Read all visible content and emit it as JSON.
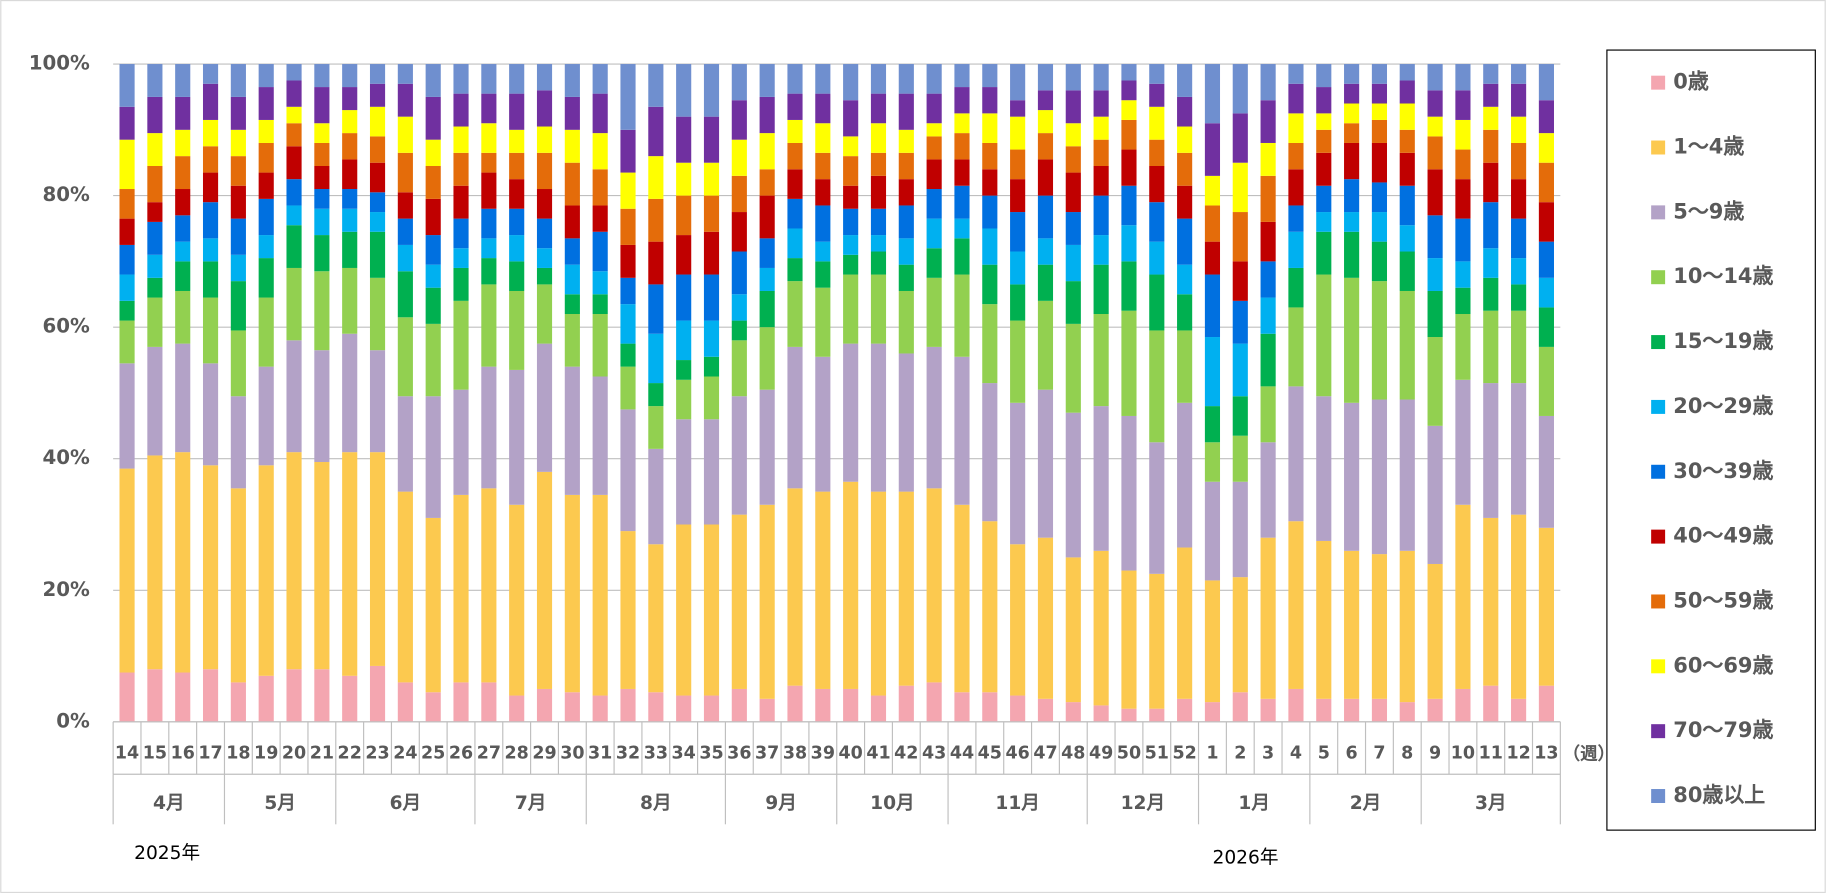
{
  "chart_data": {
    "type": "stacked_bar",
    "categories": [
      "14",
      "15",
      "16",
      "17",
      "18",
      "19",
      "20",
      "21",
      "22",
      "23",
      "24",
      "25",
      "26",
      "27",
      "28",
      "29",
      "30",
      "31",
      "32",
      "33",
      "34",
      "35",
      "36",
      "37",
      "38",
      "39",
      "40",
      "41",
      "42",
      "43",
      "44",
      "45",
      "46",
      "47",
      "48",
      "49",
      "50",
      "51",
      "52",
      "1",
      "2",
      "3",
      "4",
      "5",
      "6",
      "7",
      "8",
      "9",
      "10",
      "11",
      "12",
      "13"
    ],
    "x_unit": "（週）",
    "months": [
      {
        "label": "4月",
        "weeks": 4
      },
      {
        "label": "5月",
        "weeks": 4
      },
      {
        "label": "6月",
        "weeks": 5
      },
      {
        "label": "7月",
        "weeks": 4
      },
      {
        "label": "8月",
        "weeks": 5
      },
      {
        "label": "9月",
        "weeks": 4
      },
      {
        "label": "10月",
        "weeks": 4
      },
      {
        "label": "11月",
        "weeks": 5
      },
      {
        "label": "12月",
        "weeks": 4
      },
      {
        "label": "1月",
        "weeks": 4
      },
      {
        "label": "2月",
        "weeks": 4
      },
      {
        "label": "3月",
        "weeks": 5
      }
    ],
    "years": [
      "2025年",
      "2026年"
    ],
    "ylim": [
      0,
      100
    ],
    "yticks": [
      {
        "value": 0,
        "label": "0%"
      },
      {
        "value": 20,
        "label": "20%"
      },
      {
        "value": 40,
        "label": "40%"
      },
      {
        "value": 60,
        "label": "60%"
      },
      {
        "value": 80,
        "label": "80%"
      },
      {
        "value": 100,
        "label": "100%"
      }
    ],
    "grid": true,
    "legend": "right",
    "series": [
      {
        "name": "0歳",
        "color": "#f4a6b0",
        "values": [
          7.5,
          8,
          7.5,
          8,
          6,
          7,
          8,
          8,
          7,
          8.5,
          6,
          4.5,
          6,
          6,
          4,
          5,
          4.5,
          4,
          5,
          4.5,
          4,
          4,
          5,
          3.5,
          5.5,
          5,
          5,
          4,
          5.5,
          6,
          4.5,
          4.5,
          4,
          3.5,
          3,
          2.5,
          2,
          2,
          3.5,
          3,
          4.5,
          3.5,
          5,
          3.5,
          3.5,
          3.5,
          3,
          3.5,
          5,
          5.5,
          3.5,
          5.5
        ]
      },
      {
        "name": "1～4歳",
        "color": "#fcc94f",
        "values": [
          31,
          32.5,
          33.5,
          31,
          29.5,
          32,
          33,
          31.5,
          34,
          32.5,
          29,
          26.5,
          28.5,
          29.5,
          29,
          33,
          30,
          30.5,
          24,
          22.5,
          26,
          26,
          26.5,
          29.5,
          30,
          30,
          31.5,
          31,
          29.5,
          29.5,
          28.5,
          26,
          23,
          24.5,
          22,
          23.5,
          21,
          20.5,
          23,
          18.5,
          17.5,
          24.5,
          25.5,
          24,
          22.5,
          22,
          23,
          20.5,
          28,
          25.5,
          28,
          24
        ]
      },
      {
        "name": "5～9歳",
        "color": "#b3a2c7",
        "values": [
          16,
          16.5,
          16.5,
          15.5,
          14,
          15,
          17,
          17,
          18,
          15.5,
          14.5,
          18.5,
          16,
          18.5,
          20.5,
          19.5,
          19.5,
          18,
          18.5,
          14.5,
          16,
          16,
          18,
          17.5,
          21.5,
          20.5,
          21,
          22.5,
          21,
          21.5,
          22.5,
          21,
          21.5,
          22.5,
          22,
          22,
          23.5,
          20,
          22,
          15,
          14.5,
          14.5,
          20.5,
          22,
          22.5,
          23.5,
          23,
          21,
          19,
          20.5,
          20,
          17
        ]
      },
      {
        "name": "10～14歳",
        "color": "#92d050",
        "values": [
          6.5,
          7.5,
          8,
          10,
          10,
          10.5,
          11,
          12,
          10,
          11,
          12,
          11,
          13.5,
          12.5,
          12,
          9,
          8,
          9.5,
          6.5,
          6.5,
          6,
          6.5,
          8.5,
          9.5,
          10,
          10.5,
          10.5,
          10.5,
          9.5,
          10.5,
          12.5,
          12,
          12.5,
          13.5,
          13.5,
          14,
          16,
          17,
          11,
          6,
          7,
          8.5,
          12,
          18.5,
          19,
          18,
          16.5,
          13.5,
          10,
          11,
          11,
          10.5
        ]
      },
      {
        "name": "15～19歳",
        "color": "#00b050",
        "values": [
          3,
          3,
          4.5,
          5.5,
          7.5,
          6,
          6.5,
          5.5,
          5.5,
          7,
          7,
          5.5,
          5,
          4,
          4.5,
          2.5,
          3,
          3,
          3.5,
          3.5,
          3,
          3,
          3,
          5.5,
          3.5,
          4,
          3,
          3.5,
          4,
          4.5,
          5.5,
          6,
          5.5,
          5.5,
          6.5,
          7.5,
          7.5,
          8.5,
          5.5,
          5.5,
          6,
          8,
          6,
          6.5,
          7,
          6,
          6,
          7,
          4,
          5,
          4,
          6
        ]
      },
      {
        "name": "20～29歳",
        "color": "#00b0f0",
        "values": [
          4,
          3.5,
          3,
          3.5,
          4,
          3.5,
          3,
          4,
          3.5,
          3,
          4,
          3.5,
          3,
          3,
          4,
          3,
          4.5,
          3.5,
          6,
          7.5,
          6,
          5.5,
          4,
          3.5,
          4.5,
          3,
          3,
          2.5,
          4,
          4.5,
          3,
          5.5,
          5,
          4,
          5.5,
          4.5,
          5.5,
          5,
          4.5,
          10.5,
          8,
          5.5,
          5.5,
          3,
          3,
          4.5,
          4,
          5,
          4,
          4.5,
          4,
          4.5
        ]
      },
      {
        "name": "30～39歳",
        "color": "#0070e0",
        "values": [
          4.5,
          5,
          4,
          5.5,
          5.5,
          5.5,
          4,
          3,
          3,
          3,
          4,
          4.5,
          4.5,
          4.5,
          4,
          4.5,
          4,
          6,
          4,
          7.5,
          7,
          7,
          6.5,
          4.5,
          4.5,
          5.5,
          4,
          4,
          5,
          4.5,
          5,
          5,
          6,
          6.5,
          5,
          6,
          6,
          6,
          7,
          9.5,
          6.5,
          5.5,
          4,
          4,
          5,
          4.5,
          6,
          6.5,
          6.5,
          7,
          6,
          5.5
        ]
      },
      {
        "name": "40～49歳",
        "color": "#c00000",
        "values": [
          4,
          3,
          4,
          4.5,
          5,
          4,
          5,
          3.5,
          4.5,
          4.5,
          4,
          5.5,
          5,
          5.5,
          4.5,
          4.5,
          5,
          4,
          5,
          6.5,
          6,
          6.5,
          6,
          6.5,
          4.5,
          4,
          3.5,
          5,
          4,
          4.5,
          4,
          4,
          5,
          5.5,
          6,
          4.5,
          5.5,
          5.5,
          5,
          5,
          6,
          6,
          5.5,
          5,
          5.5,
          6,
          5,
          7,
          6,
          6,
          6,
          6
        ]
      },
      {
        "name": "50～59歳",
        "color": "#e46c0a",
        "values": [
          4.5,
          5.5,
          5,
          4,
          4.5,
          4.5,
          3.5,
          3.5,
          4,
          4,
          6,
          5,
          5,
          3,
          4,
          5.5,
          6.5,
          5.5,
          5.5,
          6.5,
          6,
          5.5,
          5.5,
          4,
          4,
          4,
          4.5,
          3.5,
          4,
          3.5,
          4,
          4,
          4.5,
          4,
          4,
          4,
          4.5,
          4,
          5,
          5.5,
          7.5,
          7,
          4,
          3.5,
          3,
          3.5,
          3.5,
          5,
          4.5,
          5,
          5.5,
          6
        ]
      },
      {
        "name": "60～69歳",
        "color": "#ffff00",
        "values": [
          7.5,
          5,
          4,
          4,
          4,
          3.5,
          2.5,
          3,
          3.5,
          4.5,
          5.5,
          4,
          4,
          4.5,
          3.5,
          4,
          5,
          5.5,
          5.5,
          6.5,
          5,
          5,
          5.5,
          5.5,
          3.5,
          4.5,
          3,
          4.5,
          3.5,
          2,
          3,
          4.5,
          5,
          3.5,
          3.5,
          3.5,
          3,
          5,
          4,
          4.5,
          7.5,
          5,
          4.5,
          2.5,
          3,
          2.5,
          4,
          3,
          4.5,
          3.5,
          4,
          4.5
        ]
      },
      {
        "name": "70～79歳",
        "color": "#7030a0",
        "values": [
          5,
          5.5,
          5,
          5.5,
          5,
          5,
          4,
          5.5,
          3.5,
          3.5,
          5,
          6.5,
          5,
          4.5,
          5.5,
          5.5,
          5,
          6,
          6.5,
          7.5,
          7,
          7,
          6,
          5.5,
          4,
          4.5,
          5.5,
          4.5,
          5.5,
          4.5,
          4,
          4,
          2.5,
          3,
          5,
          4,
          3,
          3.5,
          4.5,
          8,
          7.5,
          6.5,
          4.5,
          4,
          3,
          3,
          3.5,
          4,
          4.5,
          3.5,
          5,
          5
        ]
      },
      {
        "name": "80歳以上",
        "color": "#6f8fcf",
        "values": [
          6.5,
          5,
          5,
          3,
          5,
          3.5,
          2.5,
          3.5,
          3.5,
          3,
          3,
          5,
          4.5,
          4.5,
          4.5,
          4,
          5,
          4.5,
          10,
          6.5,
          8,
          8,
          5.5,
          5,
          4.5,
          4.5,
          5.5,
          4.5,
          4.5,
          4.5,
          3.5,
          3.5,
          5.5,
          4,
          4,
          4,
          2.5,
          3,
          5,
          9,
          7.5,
          5.5,
          3,
          3.5,
          3,
          3,
          2.5,
          4,
          4,
          3,
          3,
          5.5
        ]
      }
    ]
  }
}
